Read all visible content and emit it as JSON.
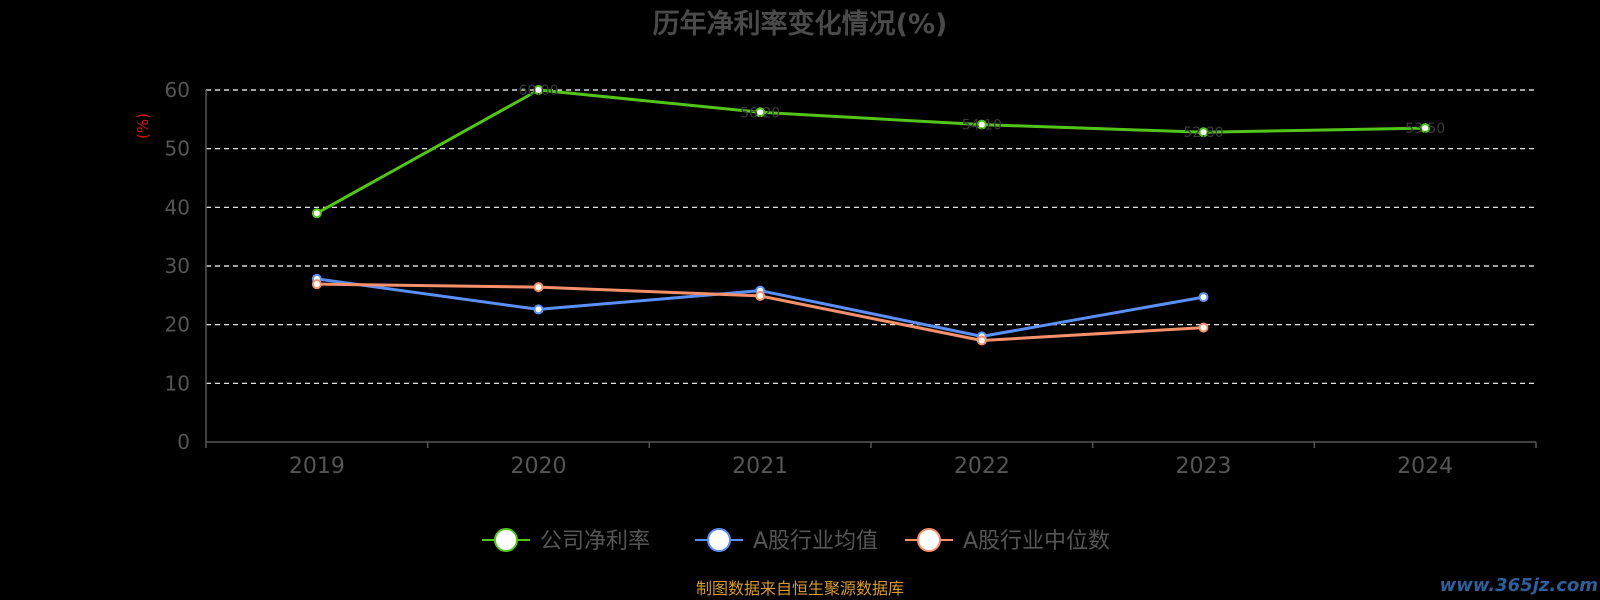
{
  "chart_data": {
    "type": "line",
    "title": "历年净利率变化情况(%)",
    "ylabel": "(%)",
    "xlabel": "",
    "categories": [
      "2019",
      "2020",
      "2021",
      "2022",
      "2023",
      "2024"
    ],
    "ylim": [
      0,
      60
    ],
    "yticks": [
      0,
      10,
      20,
      30,
      40,
      50,
      60
    ],
    "grid": true,
    "legend_position": "bottom",
    "series": [
      {
        "name": "公司净利率",
        "color": "#52c41a",
        "values": [
          39.0,
          60.0,
          56.2,
          54.1,
          52.8,
          53.5
        ]
      },
      {
        "name": "A股行业均值",
        "color": "#5b8ff9",
        "values": [
          27.8,
          22.6,
          25.8,
          18.0,
          24.7,
          null
        ]
      },
      {
        "name": "A股行业中位数",
        "color": "#f6906a",
        "values": [
          26.9,
          26.4,
          24.9,
          17.3,
          19.5,
          null
        ]
      }
    ]
  },
  "footer": {
    "source": "制图数据来自恒生聚源数据库",
    "watermark": "www.365jz.com"
  }
}
